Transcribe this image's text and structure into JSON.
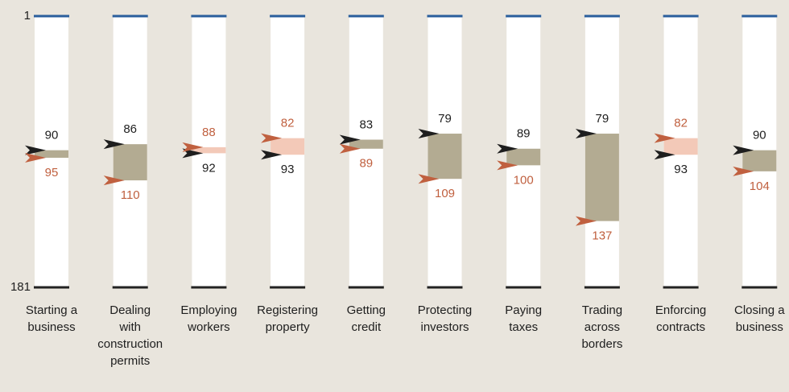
{
  "chart_data": {
    "type": "rank-range",
    "categories": [
      [
        "Starting a",
        "business"
      ],
      [
        "Dealing",
        "with",
        "construction",
        "permits"
      ],
      [
        "Employing",
        "workers"
      ],
      [
        "Registering",
        "property"
      ],
      [
        "Getting",
        "credit"
      ],
      [
        "Protecting",
        "investors"
      ],
      [
        "Paying",
        "taxes"
      ],
      [
        "Trading",
        "across",
        "borders"
      ],
      [
        "Enforcing",
        "contracts"
      ],
      [
        "Closing a",
        "business"
      ]
    ],
    "series": [
      {
        "color": "#1e1e1e",
        "values": [
          90,
          86,
          92,
          93,
          83,
          79,
          89,
          79,
          93,
          90
        ]
      },
      {
        "color": "#c0603f",
        "values": [
          95,
          110,
          88,
          82,
          89,
          109,
          100,
          137,
          82,
          104
        ]
      }
    ],
    "range_colors": [
      "#b3ab92",
      "#f3c9b8"
    ],
    "ylim": [
      1,
      181
    ],
    "yticks": [
      1,
      181
    ],
    "tick_colors": [
      "#2a5e9c",
      "#222222"
    ],
    "inverted": true
  }
}
